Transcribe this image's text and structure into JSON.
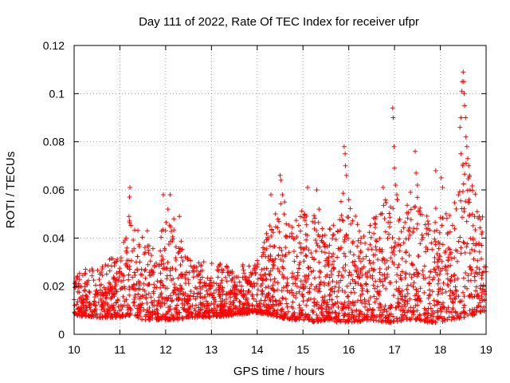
{
  "chart_data": {
    "type": "scatter",
    "title": "Day 111 of 2022, Rate Of TEC Index for receiver ufpr",
    "xlabel": "GPS time / hours",
    "ylabel": "ROTI / TECUs",
    "xlim": [
      10,
      19
    ],
    "ylim": [
      0,
      0.12
    ],
    "xticks": [
      "10",
      "11",
      "12",
      "13",
      "14",
      "15",
      "16",
      "17",
      "18",
      "19"
    ],
    "yticks": [
      "0",
      "0.02",
      "0.04",
      "0.06",
      "0.08",
      "0.1",
      "0.12"
    ],
    "grid": true,
    "marker": "+",
    "series": [
      {
        "name": "ROTI",
        "color": "#ff0000",
        "envelope": {
          "x": [
            10.0,
            10.5,
            11.0,
            11.25,
            11.5,
            11.75,
            12.0,
            12.25,
            12.5,
            13.0,
            13.5,
            14.0,
            14.25,
            14.5,
            14.75,
            15.0,
            15.25,
            15.5,
            15.75,
            15.9,
            16.0,
            16.25,
            16.5,
            16.75,
            17.0,
            17.25,
            17.5,
            17.75,
            18.0,
            18.25,
            18.5,
            18.75,
            19.0
          ],
          "low": [
            0.008,
            0.007,
            0.007,
            0.008,
            0.006,
            0.006,
            0.006,
            0.006,
            0.007,
            0.007,
            0.008,
            0.009,
            0.008,
            0.007,
            0.006,
            0.006,
            0.005,
            0.006,
            0.005,
            0.005,
            0.005,
            0.005,
            0.006,
            0.005,
            0.005,
            0.006,
            0.006,
            0.005,
            0.005,
            0.006,
            0.007,
            0.008,
            0.01
          ],
          "high": [
            0.026,
            0.03,
            0.034,
            0.05,
            0.042,
            0.035,
            0.048,
            0.045,
            0.032,
            0.03,
            0.028,
            0.033,
            0.045,
            0.055,
            0.045,
            0.052,
            0.05,
            0.042,
            0.05,
            0.065,
            0.055,
            0.045,
            0.047,
            0.055,
            0.06,
            0.055,
            0.058,
            0.05,
            0.055,
            0.05,
            0.075,
            0.06,
            0.045
          ]
        },
        "peaks": [
          {
            "x": 11.22,
            "y": 0.061
          },
          {
            "x": 11.21,
            "y": 0.057
          },
          {
            "x": 11.2,
            "y": 0.049
          },
          {
            "x": 11.6,
            "y": 0.043
          },
          {
            "x": 11.95,
            "y": 0.058
          },
          {
            "x": 12.1,
            "y": 0.058
          },
          {
            "x": 12.05,
            "y": 0.052
          },
          {
            "x": 12.18,
            "y": 0.048
          },
          {
            "x": 12.3,
            "y": 0.049
          },
          {
            "x": 14.3,
            "y": 0.058
          },
          {
            "x": 14.5,
            "y": 0.066
          },
          {
            "x": 14.52,
            "y": 0.064
          },
          {
            "x": 14.55,
            "y": 0.058
          },
          {
            "x": 14.6,
            "y": 0.055
          },
          {
            "x": 15.1,
            "y": 0.061
          },
          {
            "x": 15.3,
            "y": 0.06
          },
          {
            "x": 15.35,
            "y": 0.052
          },
          {
            "x": 15.9,
            "y": 0.078
          },
          {
            "x": 15.92,
            "y": 0.075
          },
          {
            "x": 15.93,
            "y": 0.07
          },
          {
            "x": 15.95,
            "y": 0.066
          },
          {
            "x": 16.0,
            "y": 0.056
          },
          {
            "x": 16.75,
            "y": 0.061
          },
          {
            "x": 16.96,
            "y": 0.094
          },
          {
            "x": 16.97,
            "y": 0.09
          },
          {
            "x": 16.99,
            "y": 0.078
          },
          {
            "x": 17.0,
            "y": 0.069
          },
          {
            "x": 17.02,
            "y": 0.062
          },
          {
            "x": 17.05,
            "y": 0.058
          },
          {
            "x": 17.35,
            "y": 0.059
          },
          {
            "x": 17.45,
            "y": 0.076
          },
          {
            "x": 17.47,
            "y": 0.067
          },
          {
            "x": 17.5,
            "y": 0.062
          },
          {
            "x": 17.9,
            "y": 0.068
          },
          {
            "x": 18.02,
            "y": 0.065
          },
          {
            "x": 18.05,
            "y": 0.061
          },
          {
            "x": 18.43,
            "y": 0.086
          },
          {
            "x": 18.45,
            "y": 0.09
          },
          {
            "x": 18.47,
            "y": 0.101
          },
          {
            "x": 18.48,
            "y": 0.105
          },
          {
            "x": 18.5,
            "y": 0.109
          },
          {
            "x": 18.51,
            "y": 0.105
          },
          {
            "x": 18.52,
            "y": 0.1
          },
          {
            "x": 18.53,
            "y": 0.095
          },
          {
            "x": 18.55,
            "y": 0.09
          },
          {
            "x": 18.56,
            "y": 0.082
          },
          {
            "x": 18.58,
            "y": 0.078
          },
          {
            "x": 18.45,
            "y": 0.075
          },
          {
            "x": 18.6,
            "y": 0.073
          },
          {
            "x": 18.62,
            "y": 0.07
          },
          {
            "x": 18.64,
            "y": 0.066
          },
          {
            "x": 18.65,
            "y": 0.06
          },
          {
            "x": 18.7,
            "y": 0.05
          },
          {
            "x": 18.75,
            "y": 0.049
          },
          {
            "x": 18.85,
            "y": 0.049
          }
        ],
        "sample_count": 2600
      }
    ]
  }
}
